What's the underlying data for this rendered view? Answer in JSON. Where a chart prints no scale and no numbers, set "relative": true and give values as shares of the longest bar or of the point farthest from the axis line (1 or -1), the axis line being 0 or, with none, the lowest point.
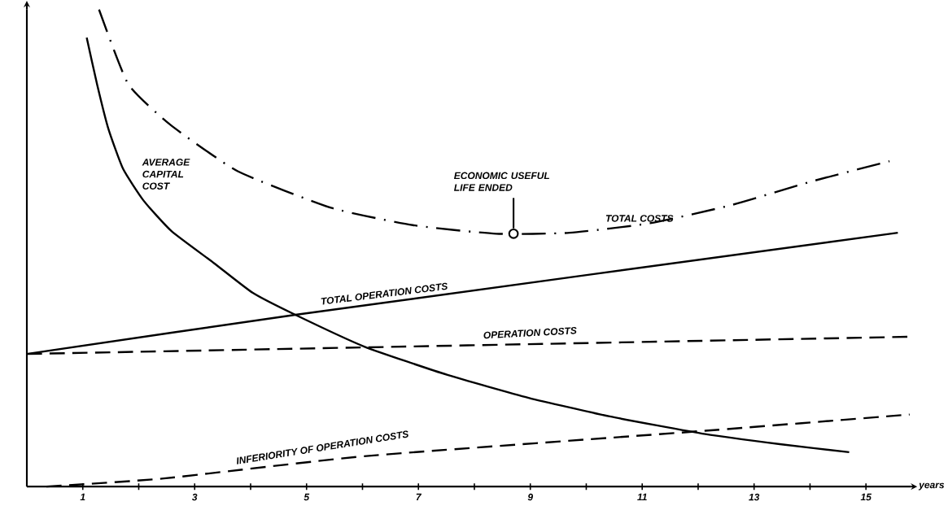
{
  "chart_data": {
    "type": "line",
    "relative": true,
    "xlabel": "years",
    "xlim": [
      0,
      15.8
    ],
    "xticks": [
      1,
      {
        "value": 2,
        "label": null
      },
      3,
      {
        "value": 4,
        "label": null
      },
      5,
      {
        "value": 6,
        "label": null
      },
      7,
      {
        "value": 8,
        "label": null
      },
      9,
      {
        "value": 10,
        "label": null
      },
      11,
      {
        "value": 12,
        "label": null
      },
      13,
      {
        "value": 14,
        "label": null
      },
      15
    ],
    "series": [
      {
        "name": "AVERAGE CAPITAL COST",
        "color": "#000000",
        "line_style": "solid",
        "x": [
          1.07,
          1.26,
          1.46,
          1.72,
          2.09,
          2.59,
          3.35,
          4.04,
          4.8,
          6.04,
          7.52,
          8.97,
          10.42,
          12.13,
          13.46,
          14.7
        ],
        "values": [
          0.941,
          0.841,
          0.749,
          0.666,
          0.599,
          0.535,
          0.468,
          0.406,
          0.36,
          0.293,
          0.234,
          0.186,
          0.147,
          0.11,
          0.089,
          0.072
        ]
      },
      {
        "name": "TOTAL COSTS",
        "color": "#000000",
        "line_style": "dashdot",
        "x": [
          1.29,
          1.81,
          2.57,
          3.77,
          5.45,
          6.9,
          8.39,
          9.7,
          11.14,
          12.59,
          14.04,
          15.42
        ],
        "values": [
          1.0,
          0.844,
          0.758,
          0.661,
          0.584,
          0.548,
          0.53,
          0.532,
          0.552,
          0.59,
          0.64,
          0.682
        ]
      },
      {
        "name": "TOTAL OPERATION COSTS",
        "color": "#000000",
        "line_style": "solid",
        "x": [
          0,
          4.8,
          15.57
        ],
        "values": [
          0.278,
          0.36,
          0.532
        ]
      },
      {
        "name": "OPERATION COSTS",
        "color": "#000000",
        "line_style": "dashed",
        "x": [
          0,
          15.78
        ],
        "values": [
          0.278,
          0.314
        ]
      },
      {
        "name": "INFERIORITY OF OPERATION COSTS",
        "color": "#000000",
        "line_style": "dashed",
        "x": [
          0.35,
          2.45,
          6.07,
          12.13,
          15.78
        ],
        "values": [
          0.0,
          0.017,
          0.064,
          0.117,
          0.151
        ]
      }
    ],
    "annotations": [
      {
        "text": "ECONOMIC USEFUL LIFE ENDED",
        "x": 8.7,
        "y": 0.53
      }
    ]
  }
}
